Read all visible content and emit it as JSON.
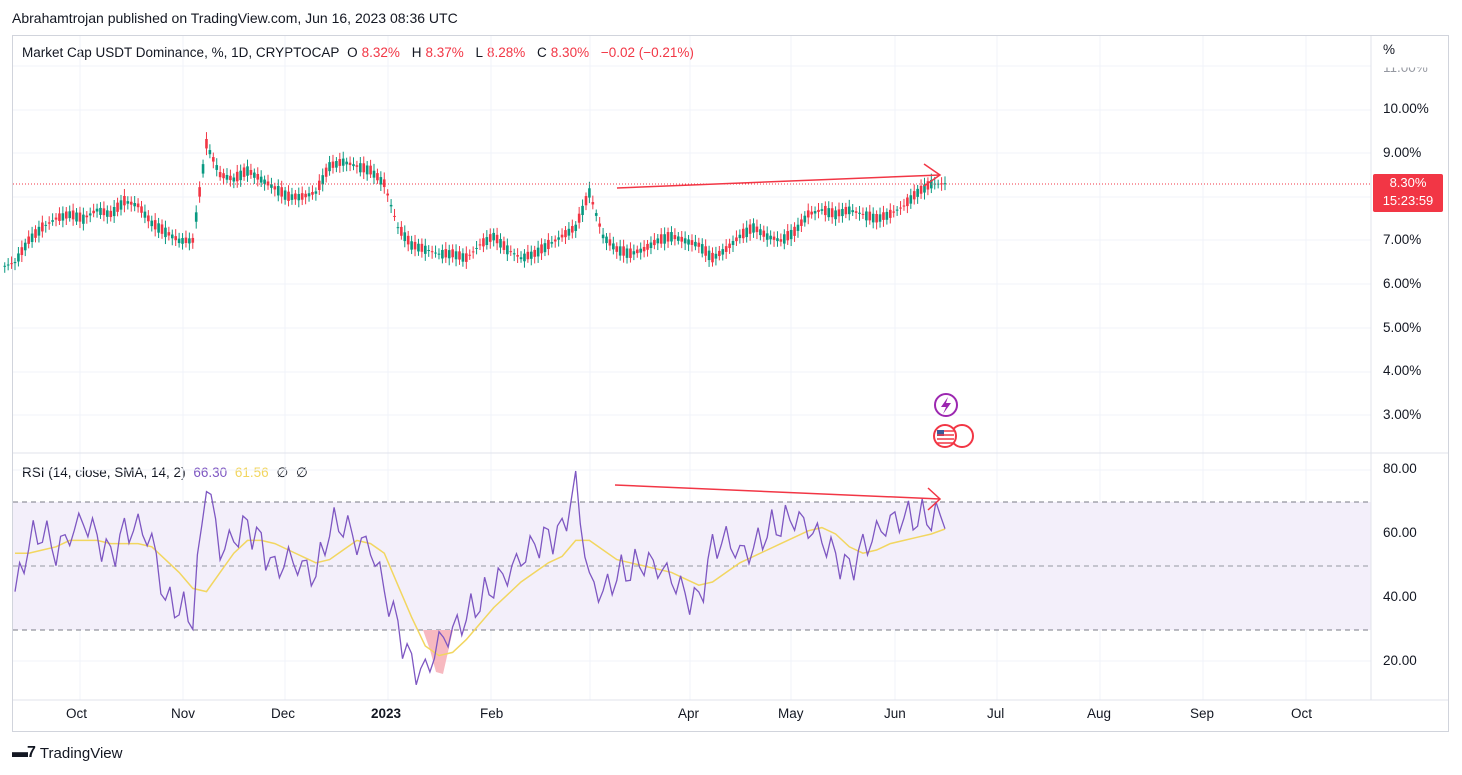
{
  "publish": "Abrahamtrojan published on TradingView.com, Jun 16, 2023 08:36 UTC",
  "main_legend": {
    "title": "Market Cap USDT Dominance, %, 1D, CRYPTOCAP",
    "o_label": "O",
    "o_val": "8.32%",
    "h_label": "H",
    "h_val": "8.37%",
    "l_label": "L",
    "l_val": "8.28%",
    "c_label": "C",
    "c_val": "8.30%",
    "change": "−0.02 (−0.21%)"
  },
  "rsi_legend": {
    "title": "RSI (14, close, SMA, 14, 2)",
    "rsi_val": "66.30",
    "sma_val": "61.56",
    "sym1": "∅",
    "sym2": "∅"
  },
  "price_tag": {
    "price": "8.30%",
    "countdown": "15:23:59"
  },
  "price_axis_unit": "%",
  "price_axis": [
    "11.00%",
    "10.00%",
    "9.00%",
    "7.00%",
    "6.00%",
    "5.00%",
    "4.00%",
    "3.00%"
  ],
  "rsi_axis": [
    "80.00",
    "60.00",
    "40.00",
    "20.00"
  ],
  "time_axis": [
    "Oct",
    "Nov",
    "Dec",
    "2023",
    "Feb",
    "Apr",
    "May",
    "Jun",
    "Jul",
    "Aug",
    "Sep",
    "Oct"
  ],
  "brand": "TradingView",
  "colors": {
    "up": "#089981",
    "down": "#f23645",
    "rsi": "#7e57c2",
    "sma": "#f2d660",
    "band": "#f3effa"
  },
  "chart_data": [
    {
      "type": "candlestick",
      "title": "Market Cap USDT Dominance, %, 1D, CRYPTOCAP",
      "x_range": [
        "2022-09-08",
        "2023-10-31"
      ],
      "ylim": [
        2.5,
        11.0
      ],
      "last_close": 8.3,
      "closes": [
        6.5,
        7.0,
        7.3,
        7.5,
        7.6,
        7.5,
        7.7,
        7.6,
        7.9,
        7.8,
        7.4,
        7.2,
        7.0,
        7.0,
        9.2,
        8.5,
        8.4,
        8.6,
        8.4,
        8.2,
        8.0,
        8.0,
        8.1,
        8.7,
        8.8,
        8.7,
        8.6,
        8.3,
        7.3,
        6.9,
        6.8,
        6.7,
        6.7,
        6.6,
        6.9,
        7.1,
        6.8,
        6.6,
        6.7,
        6.9,
        7.1,
        7.3,
        8.1,
        7.1,
        6.8,
        6.7,
        6.8,
        7.0,
        7.1,
        7.0,
        6.9,
        6.6,
        6.8,
        7.1,
        7.3,
        7.1,
        7.0,
        7.2,
        7.6,
        7.7,
        7.6,
        7.7,
        7.6,
        7.5,
        7.6,
        7.8,
        8.1,
        8.3,
        8.3
      ]
    },
    {
      "type": "line",
      "title": "RSI (14, close, SMA, 14, 2)",
      "ylim": [
        10,
        85
      ],
      "bands": [
        30,
        50,
        70
      ],
      "series": [
        {
          "name": "RSI",
          "values": [
            42,
            58,
            62,
            55,
            60,
            64,
            58,
            52,
            60,
            62,
            58,
            40,
            38,
            35,
            78,
            55,
            58,
            62,
            56,
            48,
            52,
            50,
            48,
            63,
            64,
            58,
            56,
            42,
            30,
            18,
            16,
            26,
            30,
            35,
            40,
            45,
            48,
            52,
            56,
            58,
            60,
            75,
            45,
            42,
            48,
            50,
            52,
            50,
            46,
            40,
            38,
            55,
            58,
            54,
            56,
            62,
            64,
            66,
            62,
            58,
            52,
            48,
            55,
            60,
            64,
            66,
            66,
            66,
            66.3
          ]
        },
        {
          "name": "SMA",
          "values": [
            54,
            54,
            55,
            56,
            58,
            58,
            58,
            57,
            57,
            57,
            56,
            52,
            48,
            43,
            42,
            48,
            54,
            58,
            58,
            57,
            55,
            53,
            51,
            52,
            55,
            58,
            57,
            54,
            44,
            34,
            25,
            22,
            23,
            27,
            32,
            37,
            41,
            45,
            48,
            51,
            53,
            58,
            58,
            55,
            52,
            51,
            50,
            49,
            48,
            46,
            44,
            45,
            48,
            51,
            53,
            55,
            57,
            59,
            61,
            62,
            60,
            56,
            54,
            55,
            57,
            58,
            59,
            60,
            61.56
          ]
        }
      ]
    }
  ]
}
